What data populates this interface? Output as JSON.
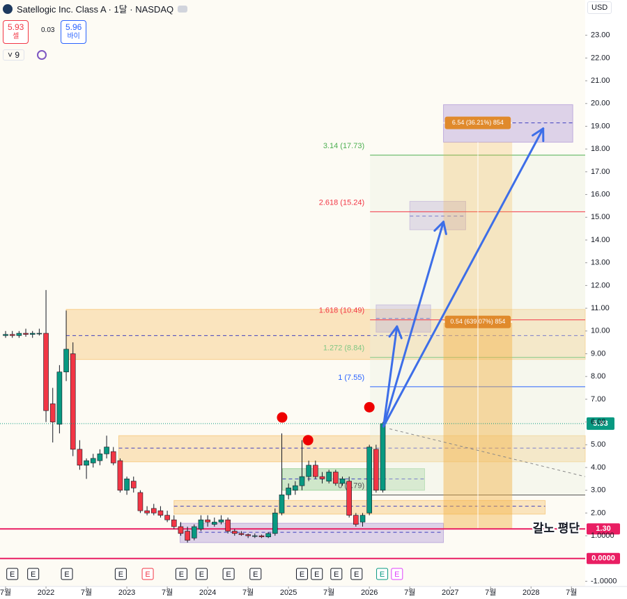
{
  "chart_data": {
    "type": "candlestick",
    "title": "Satellogic Inc. Class A · 1달 · NASDAQ",
    "currency": "USD",
    "sell": {
      "price": 5.93,
      "label": "셀"
    },
    "spread": 0.03,
    "buy": {
      "price": 5.96,
      "label": "바이"
    },
    "indicator_count": 9,
    "xlim": [
      -0.83,
      86.04
    ],
    "ylim": [
      -1.23,
      24.55
    ],
    "xticks": [
      {
        "value": 0,
        "label": "7월"
      },
      {
        "value": 6,
        "label": "2022"
      },
      {
        "value": 12,
        "label": "7월"
      },
      {
        "value": 18,
        "label": "2023"
      },
      {
        "value": 24,
        "label": "7월"
      },
      {
        "value": 30,
        "label": "2024"
      },
      {
        "value": 36,
        "label": "7월"
      },
      {
        "value": 42,
        "label": "2025"
      },
      {
        "value": 48,
        "label": "7월"
      },
      {
        "value": 54,
        "label": "2026"
      },
      {
        "value": 60,
        "label": "7월"
      },
      {
        "value": 66,
        "label": "2027"
      },
      {
        "value": 72,
        "label": "7월"
      },
      {
        "value": 78,
        "label": "2028"
      },
      {
        "value": 84,
        "label": "7월"
      }
    ],
    "yticks": [
      {
        "value": 23,
        "label": "23.00"
      },
      {
        "value": 22,
        "label": "22.00"
      },
      {
        "value": 21,
        "label": "21.00"
      },
      {
        "value": 20,
        "label": "20.00"
      },
      {
        "value": 19,
        "label": "19.00"
      },
      {
        "value": 18,
        "label": "18.00"
      },
      {
        "value": 17,
        "label": "17.00"
      },
      {
        "value": 16,
        "label": "16.00"
      },
      {
        "value": 15,
        "label": "15.00"
      },
      {
        "value": 14,
        "label": "14.00"
      },
      {
        "value": 13,
        "label": "13.00"
      },
      {
        "value": 12,
        "label": "12.00"
      },
      {
        "value": 11,
        "label": "11.00"
      },
      {
        "value": 10,
        "label": "10.00"
      },
      {
        "value": 9,
        "label": "9.00"
      },
      {
        "value": 8,
        "label": "8.00"
      },
      {
        "value": 7,
        "label": "7.00"
      },
      {
        "value": 6,
        "label": "6.00"
      },
      {
        "value": 5,
        "label": "5.00"
      },
      {
        "value": 4,
        "label": "4.00"
      },
      {
        "value": 3,
        "label": "3.00"
      },
      {
        "value": 2,
        "label": "2.00"
      },
      {
        "value": 1,
        "label": "1.0000"
      },
      {
        "value": -1,
        "label": "-1.0000"
      }
    ],
    "up_color": "#089981",
    "down_color": "#f23645",
    "open": [
      9.8,
      9.85,
      9.8,
      9.9,
      9.85,
      9.9,
      9.9,
      6.8,
      5.9,
      8.2,
      9.0,
      4.8,
      4.1,
      4.2,
      4.3,
      4.6,
      4.7,
      4.3,
      3.0,
      3.4,
      2.9,
      2.1,
      2.2,
      2.1,
      1.9,
      1.7,
      1.4,
      1.2,
      0.9,
      1.3,
      1.7,
      1.5,
      1.6,
      1.7,
      1.2,
      1.1,
      1.05,
      1.0,
      1.0,
      0.95,
      1.1,
      2.0,
      2.8,
      3.0,
      3.2,
      3.6,
      4.1,
      3.6,
      3.4,
      3.8,
      3.3,
      3.4,
      1.9,
      1.6,
      2.0,
      4.8,
      3.0
    ],
    "high": [
      10.0,
      10.0,
      10.0,
      10.1,
      10.0,
      10.1,
      11.8,
      7.5,
      8.5,
      10.9,
      9.5,
      5.2,
      4.4,
      4.6,
      4.8,
      5.4,
      4.9,
      4.4,
      3.6,
      3.6,
      3.0,
      2.3,
      2.4,
      2.3,
      2.1,
      1.9,
      1.6,
      1.4,
      1.5,
      1.9,
      1.9,
      1.8,
      1.9,
      1.8,
      1.3,
      1.2,
      1.1,
      1.1,
      1.05,
      1.15,
      2.2,
      5.5,
      3.3,
      3.4,
      5.2,
      4.3,
      4.3,
      3.8,
      3.9,
      3.9,
      3.6,
      3.6,
      2.0,
      2.0,
      5.0,
      5.0,
      6.0
    ],
    "low": [
      9.7,
      9.7,
      9.7,
      9.75,
      9.7,
      9.8,
      6.0,
      5.1,
      5.5,
      7.8,
      4.5,
      3.9,
      3.5,
      4.0,
      4.1,
      4.4,
      4.1,
      2.9,
      2.8,
      2.9,
      2.0,
      1.9,
      1.9,
      1.8,
      1.6,
      1.3,
      1.0,
      0.7,
      0.8,
      1.2,
      1.4,
      1.4,
      1.5,
      1.1,
      1.0,
      1.0,
      0.9,
      0.9,
      0.9,
      0.9,
      1.0,
      1.9,
      2.6,
      2.8,
      3.0,
      3.4,
      3.5,
      3.3,
      3.3,
      3.2,
      3.2,
      1.8,
      1.4,
      1.4,
      1.9,
      2.9,
      2.9
    ],
    "close": [
      9.85,
      9.8,
      9.9,
      9.85,
      9.9,
      9.9,
      6.5,
      6.0,
      8.2,
      9.2,
      4.8,
      4.1,
      4.3,
      4.4,
      4.6,
      4.9,
      4.2,
      3.0,
      3.5,
      3.1,
      2.1,
      2.0,
      2.0,
      1.9,
      1.7,
      1.4,
      1.1,
      0.8,
      1.4,
      1.7,
      1.6,
      1.6,
      1.7,
      1.2,
      1.1,
      1.05,
      1.0,
      1.0,
      0.95,
      1.1,
      2.0,
      2.8,
      3.1,
      3.2,
      3.6,
      4.1,
      3.6,
      3.5,
      3.8,
      3.3,
      3.5,
      1.9,
      1.5,
      1.9,
      4.9,
      3.0,
      5.93
    ],
    "last_price": {
      "value": 5.93,
      "label": "5.93",
      "color": "#089981"
    },
    "levels": [
      {
        "value": 1.3,
        "label": "1.30",
        "note": "갈노 평단",
        "color": "#e91e63"
      },
      {
        "value": 0,
        "label": "0.0000",
        "color": "#e91e63"
      }
    ],
    "fib": {
      "x": [
        54.1,
        86.04
      ],
      "levels": [
        {
          "value": 17.73,
          "label": "3.14 (17.73)",
          "color": "#4caf50"
        },
        {
          "value": 15.24,
          "label": "2.618 (15.24)",
          "color": "#f23645"
        },
        {
          "value": 10.49,
          "label": "1.618 (10.49)",
          "color": "#f23645"
        },
        {
          "value": 8.84,
          "label": "1.272 (8.84)",
          "color": "#81c784"
        },
        {
          "value": 7.55,
          "label": "1 (7.55)",
          "color": "#2962ff"
        },
        {
          "value": 2.79,
          "label": "0 (2.79)",
          "color": "#555555"
        }
      ]
    },
    "zones": [
      {
        "x": [
          9,
          86.04
        ],
        "y": [
          8.75,
          10.95
        ],
        "mid": 9.8,
        "color": "#f5b041"
      },
      {
        "x": [
          16.8,
          86.04
        ],
        "y": [
          4.25,
          5.4
        ],
        "mid": 4.85,
        "color": "#f5b041"
      },
      {
        "x": [
          25,
          80.1
        ],
        "y": [
          1.95,
          2.55
        ],
        "mid": 2.3,
        "color": "#f5b041"
      },
      {
        "x": [
          41.1,
          62.2
        ],
        "y": [
          3.0,
          3.95
        ],
        "mid": 3.5,
        "color": "#66bb6a"
      },
      {
        "x": [
          25.9,
          65.0
        ],
        "y": [
          0.7,
          1.55
        ],
        "mid": 1.15,
        "color": "#9575cd"
      },
      {
        "x": [
          65.0,
          84.2
        ],
        "y": [
          18.3,
          19.95
        ],
        "mid": 19.15,
        "color": "#9575cd"
      },
      {
        "x": [
          60.0,
          68.3
        ],
        "y": [
          14.45,
          15.7
        ],
        "mid": 15.05,
        "color": "#9575cd"
      },
      {
        "x": [
          55.0,
          63.1
        ],
        "y": [
          9.95,
          11.15
        ],
        "mid": 10.55,
        "color": "#9575cd"
      }
    ],
    "positions": [
      {
        "x": [
          65.0,
          75.2
        ],
        "y": [
          1.3,
          18.3
        ],
        "target": 19.15,
        "label": "6.54 (36.21%) 854"
      },
      {
        "x": [
          65.0,
          75.2
        ],
        "y": [
          1.3,
          10.4
        ],
        "target": 10.4,
        "label": "0.54 (639.07%) 854"
      }
    ],
    "arrows": [
      {
        "from": [
          56.1,
          5.8
        ],
        "to": [
          58.1,
          10.2
        ]
      },
      {
        "from": [
          56.1,
          5.8
        ],
        "to": [
          65.0,
          14.8
        ]
      },
      {
        "from": [
          56.1,
          5.8
        ],
        "to": [
          79.8,
          18.9
        ]
      }
    ],
    "trend": {
      "from": [
        57.0,
        5.7
      ],
      "to": [
        86.04,
        3.6
      ]
    },
    "signals": [
      {
        "x": 41.05,
        "y": 6.2
      },
      {
        "x": 44.9,
        "y": 5.2
      },
      {
        "x": 54.0,
        "y": 6.65
      }
    ],
    "earnings": [
      {
        "x": 1.0,
        "label": "E"
      },
      {
        "x": 4.1,
        "label": "E"
      },
      {
        "x": 9.1,
        "label": "E"
      },
      {
        "x": 17.1,
        "label": "E"
      },
      {
        "x": 21.1,
        "label": "E",
        "color": "#f23645"
      },
      {
        "x": 26.1,
        "label": "E"
      },
      {
        "x": 29.1,
        "label": "E"
      },
      {
        "x": 33.1,
        "label": "E"
      },
      {
        "x": 37.1,
        "label": "E"
      },
      {
        "x": 44.0,
        "label": "E"
      },
      {
        "x": 46.2,
        "label": "E"
      },
      {
        "x": 49.1,
        "label": "E"
      },
      {
        "x": 52.1,
        "label": "E"
      },
      {
        "x": 55.9,
        "label": "E",
        "color": "#089981"
      },
      {
        "x": 58.1,
        "label": "E",
        "color": "#e040fb"
      }
    ]
  }
}
